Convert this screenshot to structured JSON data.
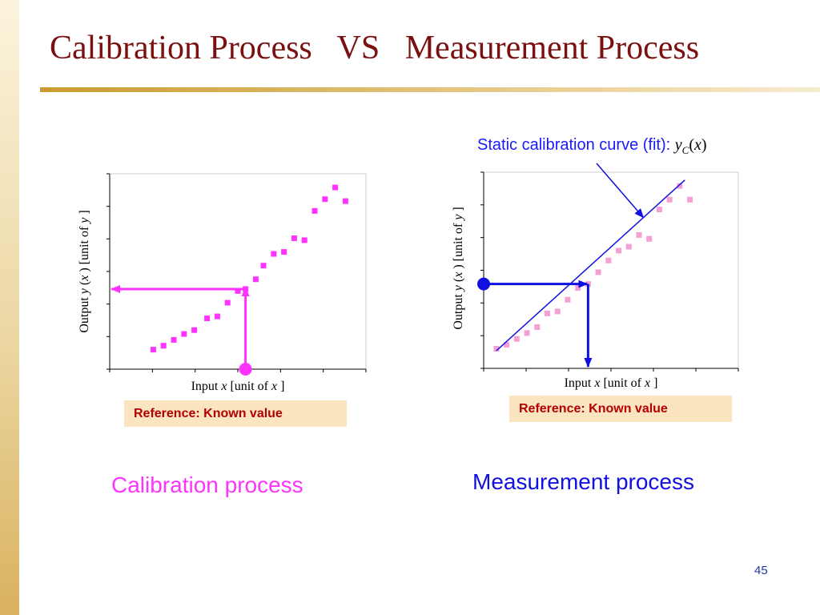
{
  "slide": {
    "title": "Calibration Process   VS   Measurement Process",
    "page_number": "45",
    "colors": {
      "title": "#7a1010",
      "calibration": "#ff33ff",
      "measurement": "#1010e0",
      "fit_point": "#f4a0d4",
      "reference_text": "#b40000"
    }
  },
  "left": {
    "caption": "Calibration process",
    "reference_label": "Reference:  Known value",
    "xlabel_prefix": "Input ",
    "xlabel_var": "x",
    "xlabel_mid": " [unit of ",
    "xlabel_var2": "x",
    "xlabel_suffix": " ]",
    "ylabel_prefix": "Output ",
    "ylabel_var": "y",
    "ylabel_mid": " (",
    "ylabel_var2": "x",
    "ylabel_mid2": " ) [unit of ",
    "ylabel_var3": "y",
    "ylabel_suffix": " ]"
  },
  "right": {
    "caption": "Measurement process",
    "reference_label": "Reference:  Known value",
    "fit_label": "Static calibration curve (fit): ",
    "fit_fn": "y",
    "fit_sub": "C",
    "fit_open": "(",
    "fit_arg": "x",
    "fit_close": ")",
    "xlabel_prefix": "Input ",
    "xlabel_var": "x",
    "xlabel_mid": " [unit of ",
    "xlabel_var2": "x",
    "xlabel_suffix": " ]",
    "ylabel_prefix": "Output ",
    "ylabel_var": "y",
    "ylabel_mid": " (",
    "ylabel_var2": "x",
    "ylabel_mid2": " ) [unit of ",
    "ylabel_var3": "y",
    "ylabel_suffix": " ]"
  },
  "chart_data": [
    {
      "type": "scatter",
      "name": "Calibration process",
      "xlim": [
        0,
        10
      ],
      "ylim": [
        0,
        10
      ],
      "ticks": 6,
      "grid": false,
      "points": [
        [
          1.7,
          1.0
        ],
        [
          2.1,
          1.2
        ],
        [
          2.5,
          1.5
        ],
        [
          2.9,
          1.8
        ],
        [
          3.3,
          2.0
        ],
        [
          3.8,
          2.6
        ],
        [
          4.2,
          2.7
        ],
        [
          4.6,
          3.4
        ],
        [
          5.0,
          4.0
        ],
        [
          5.3,
          4.1
        ],
        [
          5.7,
          4.6
        ],
        [
          6.0,
          5.3
        ],
        [
          6.4,
          5.9
        ],
        [
          6.8,
          6.0
        ],
        [
          7.2,
          6.7
        ],
        [
          7.6,
          6.6
        ],
        [
          8.0,
          8.1
        ],
        [
          8.4,
          8.7
        ],
        [
          8.8,
          9.3
        ],
        [
          9.2,
          8.6
        ]
      ],
      "reference_input": 5.3,
      "read_output": 4.1
    },
    {
      "type": "scatter",
      "name": "Measurement process",
      "xlim": [
        0,
        10
      ],
      "ylim": [
        0,
        10
      ],
      "ticks": 6,
      "grid": false,
      "points": [
        [
          0.5,
          1.0
        ],
        [
          0.9,
          1.2
        ],
        [
          1.3,
          1.5
        ],
        [
          1.7,
          1.8
        ],
        [
          2.1,
          2.1
        ],
        [
          2.5,
          2.8
        ],
        [
          2.9,
          2.9
        ],
        [
          3.3,
          3.5
        ],
        [
          3.7,
          4.1
        ],
        [
          4.1,
          4.3
        ],
        [
          4.5,
          4.9
        ],
        [
          4.9,
          5.5
        ],
        [
          5.3,
          6.0
        ],
        [
          5.7,
          6.2
        ],
        [
          6.1,
          6.8
        ],
        [
          6.5,
          6.6
        ],
        [
          6.9,
          8.1
        ],
        [
          7.3,
          8.6
        ],
        [
          7.7,
          9.3
        ],
        [
          8.1,
          8.6
        ]
      ],
      "fit_line": [
        [
          0.5,
          0.9
        ],
        [
          7.9,
          9.6
        ]
      ],
      "reference_output": 4.3,
      "read_input": 4.1
    }
  ]
}
